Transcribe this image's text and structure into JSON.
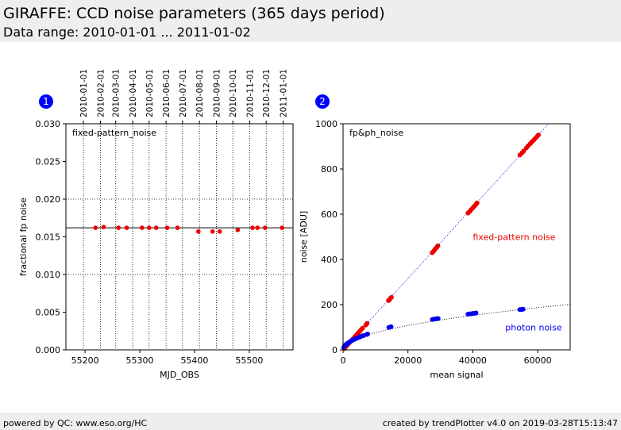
{
  "header": {
    "title": "GIRAFFE: CCD noise parameters (365 days period)",
    "subtitle": "Data range: 2010-01-01 ... 2011-01-02"
  },
  "footer": {
    "left": "powered by QC: www.eso.org/HC",
    "right": "created by trendPlotter v4.0 on 2019-03-28T15:13:47"
  },
  "colors": {
    "red_series": "#ee0000",
    "blue_series": "#0000ee",
    "badge": "#0000ff",
    "bar": "#eeeeee"
  },
  "chart_data": [
    {
      "type": "scatter",
      "badge": "1",
      "panel_label": "fixed-pattern_noise",
      "xlabel": "MJD_OBS",
      "ylabel": "fractional fp noise",
      "xlim": [
        55165,
        55580
      ],
      "ylim": [
        0.0,
        0.03
      ],
      "xticks": [
        55200,
        55300,
        55400,
        55500
      ],
      "yticks": [
        "0.000",
        "0.005",
        "0.010",
        "0.015",
        "0.020",
        "0.025",
        "0.030"
      ],
      "grid": "dotted",
      "top_date_ticks": [
        {
          "mjd": 55197,
          "label": "2010-01-01"
        },
        {
          "mjd": 55228,
          "label": "2010-02-01"
        },
        {
          "mjd": 55256,
          "label": "2010-03-01"
        },
        {
          "mjd": 55287,
          "label": "2010-04-01"
        },
        {
          "mjd": 55317,
          "label": "2010-05-01"
        },
        {
          "mjd": 55348,
          "label": "2010-06-01"
        },
        {
          "mjd": 55378,
          "label": "2010-07-01"
        },
        {
          "mjd": 55409,
          "label": "2010-08-01"
        },
        {
          "mjd": 55440,
          "label": "2010-09-01"
        },
        {
          "mjd": 55470,
          "label": "2010-10-01"
        },
        {
          "mjd": 55501,
          "label": "2010-11-01"
        },
        {
          "mjd": 55531,
          "label": "2010-12-01"
        },
        {
          "mjd": 55562,
          "label": "2011-01-01"
        }
      ],
      "reference_line": 0.0162,
      "series": [
        {
          "color": "#ee0000",
          "points": [
            [
              55219,
              0.0162
            ],
            [
              55234,
              0.0163
            ],
            [
              55261,
              0.0162
            ],
            [
              55276,
              0.0162
            ],
            [
              55304,
              0.0162
            ],
            [
              55317,
              0.0162
            ],
            [
              55330,
              0.0162
            ],
            [
              55350,
              0.0162
            ],
            [
              55369,
              0.0162
            ],
            [
              55407,
              0.0157
            ],
            [
              55433,
              0.0157
            ],
            [
              55446,
              0.0157
            ],
            [
              55479,
              0.0159
            ],
            [
              55506,
              0.0162
            ],
            [
              55515,
              0.0162
            ],
            [
              55529,
              0.0162
            ],
            [
              55560,
              0.0162
            ]
          ]
        }
      ]
    },
    {
      "type": "scatter",
      "badge": "2",
      "panel_label": "fp&ph_noise",
      "xlabel": "mean signal",
      "ylabel": "noise [ADU]",
      "xlim": [
        0,
        70000
      ],
      "ylim": [
        0,
        1000
      ],
      "xticks": [
        0,
        20000,
        40000,
        60000
      ],
      "yticks": [
        0,
        200,
        400,
        600,
        800,
        1000
      ],
      "grid": "none",
      "series": [
        {
          "name": "fixed-pattern noise",
          "color": "#ee0000",
          "points": [
            [
              300,
              5
            ],
            [
              500,
              8
            ],
            [
              800,
              13
            ],
            [
              1100,
              18
            ],
            [
              1500,
              24
            ],
            [
              2000,
              32
            ],
            [
              2500,
              40
            ],
            [
              3000,
              48
            ],
            [
              3500,
              56
            ],
            [
              4000,
              64
            ],
            [
              4500,
              72
            ],
            [
              5000,
              80
            ],
            [
              5500,
              88
            ],
            [
              6000,
              96
            ],
            [
              7000,
              110
            ],
            [
              7400,
              117
            ],
            [
              14000,
              218
            ],
            [
              14300,
              222
            ],
            [
              14600,
              228
            ],
            [
              14900,
              232
            ],
            [
              27500,
              430
            ],
            [
              27900,
              436
            ],
            [
              28200,
              442
            ],
            [
              28500,
              448
            ],
            [
              28900,
              454
            ],
            [
              29200,
              460
            ],
            [
              38500,
              605
            ],
            [
              39000,
              612
            ],
            [
              39500,
              620
            ],
            [
              40000,
              628
            ],
            [
              40500,
              636
            ],
            [
              41000,
              644
            ],
            [
              41300,
              650
            ],
            [
              54500,
              862
            ],
            [
              55200,
              872
            ],
            [
              55700,
              880
            ],
            [
              56500,
              893
            ],
            [
              57000,
              902
            ],
            [
              57700,
              912
            ],
            [
              58200,
              920
            ],
            [
              58800,
              928
            ],
            [
              59300,
              936
            ],
            [
              59800,
              944
            ],
            [
              60200,
              950
            ]
          ]
        },
        {
          "name": "photon noise",
          "color": "#0000ee",
          "points": [
            [
              200,
              10
            ],
            [
              400,
              15
            ],
            [
              600,
              19
            ],
            [
              800,
              22
            ],
            [
              1000,
              25
            ],
            [
              1300,
              28
            ],
            [
              1600,
              31
            ],
            [
              2000,
              35
            ],
            [
              2400,
              38
            ],
            [
              2800,
              42
            ],
            [
              3300,
              45
            ],
            [
              3800,
              49
            ],
            [
              4300,
              52
            ],
            [
              4800,
              55
            ],
            [
              5300,
              58
            ],
            [
              5800,
              61
            ],
            [
              6300,
              63
            ],
            [
              7300,
              68
            ],
            [
              7600,
              70
            ],
            [
              14100,
              99
            ],
            [
              14400,
              100
            ],
            [
              14800,
              102
            ],
            [
              27500,
              134
            ],
            [
              28000,
              136
            ],
            [
              28500,
              137
            ],
            [
              29000,
              138
            ],
            [
              29300,
              138
            ],
            [
              38500,
              158
            ],
            [
              39000,
              159
            ],
            [
              39500,
              159
            ],
            [
              40000,
              161
            ],
            [
              40500,
              162
            ],
            [
              41000,
              163
            ],
            [
              54500,
              178
            ],
            [
              55000,
              179
            ],
            [
              55500,
              180
            ]
          ]
        }
      ],
      "fit_lines": [
        {
          "color": "#0000ee",
          "style": "dotted",
          "kind": "linear"
        },
        {
          "color": "#000000",
          "style": "dotted",
          "kind": "sqrt"
        }
      ]
    }
  ]
}
